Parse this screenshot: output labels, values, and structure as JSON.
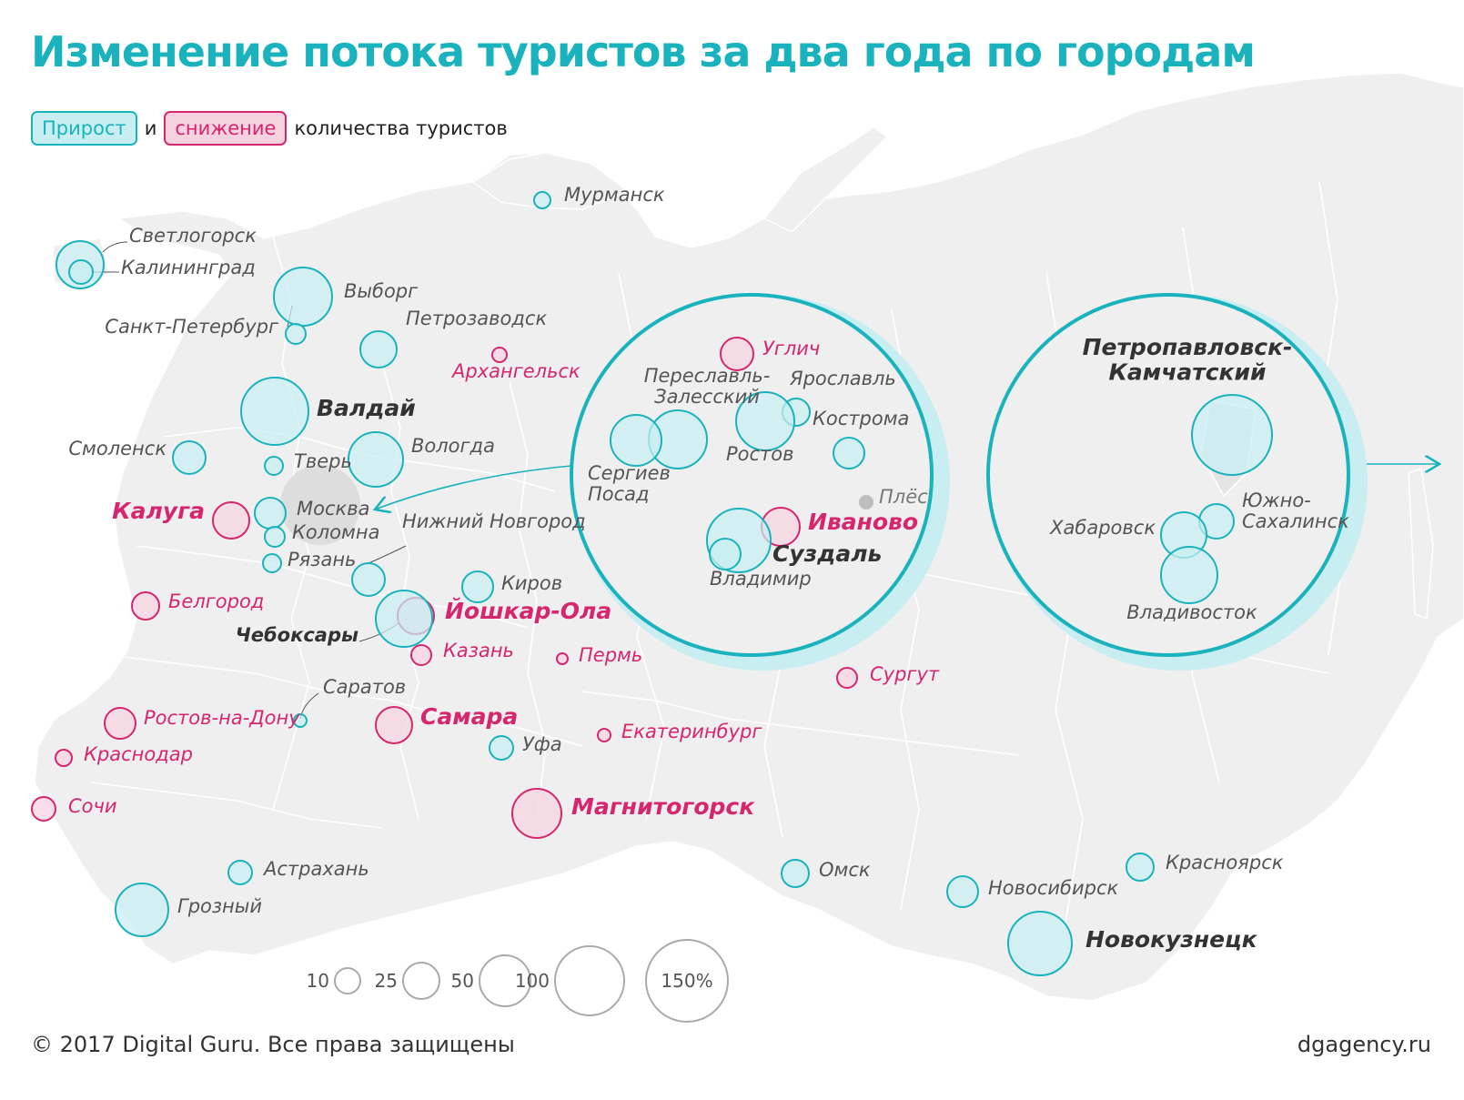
{
  "title": "Изменение потока туристов за два года по городам",
  "legend": {
    "growth": "Прирост",
    "and": "и",
    "decline": "снижение",
    "suffix": "количества туристов"
  },
  "colors": {
    "growth": "#1ab3bd",
    "growth_fill": "#c8eef1",
    "decline": "#d6266e",
    "decline_fill": "#f6d2df",
    "neutral": "#bdbdbd",
    "land": "#efefef",
    "highlight": "#dddddd"
  },
  "cities": [
    {
      "id": "svetlogorsk",
      "name": "Светлогорск",
      "trend": "growth"
    },
    {
      "id": "kaliningrad",
      "name": "Калининград",
      "trend": "growth"
    },
    {
      "id": "murmansk",
      "name": "Мурманск",
      "trend": "growth"
    },
    {
      "id": "vyborg",
      "name": "Выборг",
      "trend": "growth"
    },
    {
      "id": "spb",
      "name": "Санкт-Петербург",
      "trend": "growth"
    },
    {
      "id": "petrozavodsk",
      "name": "Петрозаводск",
      "trend": "growth"
    },
    {
      "id": "arkhangelsk",
      "name": "Архангельск",
      "trend": "decline"
    },
    {
      "id": "valdai",
      "name": "Валдай",
      "trend": "growth"
    },
    {
      "id": "vologda",
      "name": "Вологда",
      "trend": "growth"
    },
    {
      "id": "smolensk",
      "name": "Смоленск",
      "trend": "growth"
    },
    {
      "id": "tver",
      "name": "Тверь",
      "trend": "growth"
    },
    {
      "id": "moscow",
      "name": "Москва",
      "trend": "growth"
    },
    {
      "id": "kaluga",
      "name": "Калуга",
      "trend": "decline"
    },
    {
      "id": "kolomna",
      "name": "Коломна",
      "trend": "growth"
    },
    {
      "id": "ryazan",
      "name": "Рязань",
      "trend": "growth"
    },
    {
      "id": "nnovgorod",
      "name": "Нижний Новгород",
      "trend": "growth"
    },
    {
      "id": "kirov",
      "name": "Киров",
      "trend": "growth"
    },
    {
      "id": "belgorod",
      "name": "Белгород",
      "trend": "decline"
    },
    {
      "id": "yoshkarola",
      "name": "Йошкар-Ола",
      "trend": "decline"
    },
    {
      "id": "cheboksary",
      "name": "Чебоксары",
      "trend": "growth"
    },
    {
      "id": "kazan",
      "name": "Казань",
      "trend": "decline"
    },
    {
      "id": "perm",
      "name": "Пермь",
      "trend": "decline"
    },
    {
      "id": "surgut",
      "name": "Сургут",
      "trend": "decline"
    },
    {
      "id": "saratov",
      "name": "Саратов",
      "trend": "growth"
    },
    {
      "id": "rostov_don",
      "name": "Ростов-на-Дону",
      "trend": "decline"
    },
    {
      "id": "samara",
      "name": "Самара",
      "trend": "decline"
    },
    {
      "id": "ufa",
      "name": "Уфа",
      "trend": "growth"
    },
    {
      "id": "ekaterinburg",
      "name": "Екатеринбург",
      "trend": "decline"
    },
    {
      "id": "krasnodar",
      "name": "Краснодар",
      "trend": "decline"
    },
    {
      "id": "sochi",
      "name": "Сочи",
      "trend": "decline"
    },
    {
      "id": "magnitogorsk",
      "name": "Магнитогорск",
      "trend": "decline"
    },
    {
      "id": "astrakhan",
      "name": "Астрахань",
      "trend": "growth"
    },
    {
      "id": "grozny",
      "name": "Грозный",
      "trend": "growth"
    },
    {
      "id": "omsk",
      "name": "Омск",
      "trend": "growth"
    },
    {
      "id": "novosibirsk",
      "name": "Новосибирск",
      "trend": "growth"
    },
    {
      "id": "krasnoyarsk",
      "name": "Красноярск",
      "trend": "growth"
    },
    {
      "id": "novokuznetsk",
      "name": "Новокузнецк",
      "trend": "growth"
    }
  ],
  "inset_golden_ring": {
    "cities": [
      {
        "id": "uglich",
        "name": "Углич",
        "trend": "decline"
      },
      {
        "id": "pereslavl",
        "name": "Переславль-Залесский",
        "name_lines": [
          "Переславль-",
          "Залесский"
        ],
        "trend": "growth"
      },
      {
        "id": "yaroslavl",
        "name": "Ярославль",
        "trend": "growth"
      },
      {
        "id": "kostroma",
        "name": "Кострома",
        "trend": "growth"
      },
      {
        "id": "sergiev",
        "name": "Сергиев Посад",
        "name_lines": [
          "Сергиев",
          "Посад"
        ],
        "trend": "growth"
      },
      {
        "id": "rostov",
        "name": "Ростов",
        "trend": "growth"
      },
      {
        "id": "ples",
        "name": "Плёс",
        "trend": "neutral"
      },
      {
        "id": "ivanovo",
        "name": "Иваново",
        "trend": "decline"
      },
      {
        "id": "suzdal",
        "name": "Суздаль",
        "trend": "growth"
      },
      {
        "id": "vladimir",
        "name": "Владимир",
        "trend": "growth"
      }
    ]
  },
  "inset_far_east": {
    "cities": [
      {
        "id": "petropavlovsk",
        "name": "Петропавловск-Камчатский",
        "name_lines": [
          "Петропавловск-",
          "Камчатский"
        ],
        "trend": "growth"
      },
      {
        "id": "yuzhno",
        "name": "Южно-Сахалинск",
        "name_lines": [
          "Южно-",
          "Сахалинск"
        ],
        "trend": "growth"
      },
      {
        "id": "khabarovsk",
        "name": "Хабаровск",
        "trend": "growth"
      },
      {
        "id": "vladivostok",
        "name": "Владивосток",
        "trend": "growth"
      }
    ]
  },
  "size_legend": [
    {
      "label": "10",
      "pct": 10
    },
    {
      "label": "25",
      "pct": 25
    },
    {
      "label": "50",
      "pct": 50
    },
    {
      "label": "100",
      "pct": 100
    },
    {
      "label": "150%",
      "pct": 150
    }
  ],
  "footer": {
    "copyright": "© 2017 Digital Guru. Все права защищены",
    "site": "dgagency.ru"
  }
}
